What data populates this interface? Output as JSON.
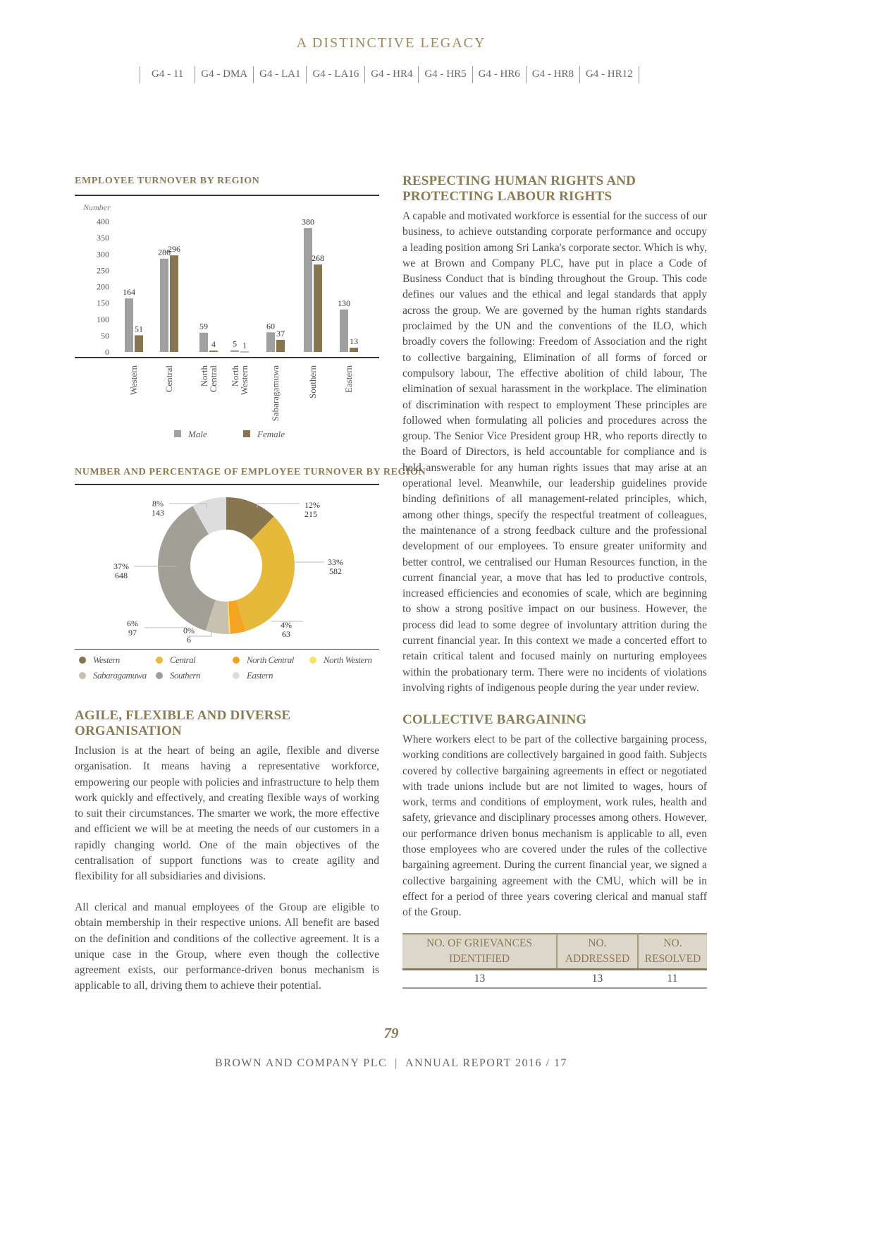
{
  "header": {
    "title": "A DISTINCTIVE LEGACY",
    "gri_tags": [
      "G4 - 11",
      "G4 - DMA",
      "G4 - LA1",
      "G4 - LA16",
      "G4 - HR4",
      "G4 - HR5",
      "G4 - HR6",
      "G4 - HR8",
      "G4 - HR12"
    ]
  },
  "chart_data": [
    {
      "type": "bar",
      "title": "EMPLOYEE TURNOVER BY REGION",
      "ylabel": "Number",
      "ylim": [
        0,
        400
      ],
      "yticks": [
        0,
        50,
        100,
        150,
        200,
        250,
        300,
        350,
        400
      ],
      "categories": [
        "Western",
        "Central",
        "North Central",
        "North Western",
        "Sabaragamuwa",
        "Southern",
        "Eastern"
      ],
      "series": [
        {
          "name": "Male",
          "color": "#a0a0a0",
          "values": [
            164,
            286,
            59,
            5,
            60,
            380,
            130
          ]
        },
        {
          "name": "Female",
          "color": "#87764f",
          "values": [
            51,
            296,
            4,
            1,
            37,
            268,
            13
          ]
        }
      ],
      "legend": "bottom",
      "grid": false
    },
    {
      "type": "pie",
      "donut": true,
      "title": "NUMBER AND PERCENTAGE OF EMPLOYEE TURNOVER BY REGION",
      "legend": "bottom",
      "slices": [
        {
          "name": "Western",
          "value": 215,
          "percent": "12%",
          "color": "#87764f"
        },
        {
          "name": "Central",
          "value": 582,
          "percent": "33%",
          "color": "#e6b93a"
        },
        {
          "name": "North Central",
          "value": 63,
          "percent": "4%",
          "color": "#f5a320"
        },
        {
          "name": "North Western",
          "value": 6,
          "percent": "0%",
          "color": "#f7e463"
        },
        {
          "name": "Sabaragamuwa",
          "value": 97,
          "percent": "6%",
          "color": "#c9c0ad"
        },
        {
          "name": "Southern",
          "value": 648,
          "percent": "37%",
          "color": "#a29f96"
        },
        {
          "name": "Eastern",
          "value": 143,
          "percent": "8%",
          "color": "#dddddd"
        }
      ]
    }
  ],
  "left": {
    "heading": "AGILE, FLEXIBLE AND DIVERSE ORGANISATION",
    "p1": "Inclusion is at the heart of being an agile, flexible and diverse organisation. It means having a representative workforce, empowering our people with policies and infrastructure to help them work quickly and effectively, and creating flexible ways of working to suit their circumstances. The smarter we work, the more effective and efficient we will be at meeting the needs of our customers in a rapidly changing world. One of the main objectives of the centralisation of support functions was to create agility and flexibility for all subsidiaries and divisions.",
    "p2": "All clerical and manual employees of the Group are eligible to obtain membership in their respective unions. All benefit are based on the definition and conditions of the collective agreement. It is a unique case in the Group, where even though the collective agreement exists, our performance-driven bonus mechanism is applicable to all, driving them to achieve their potential."
  },
  "right": {
    "heading1": "RESPECTING HUMAN RIGHTS AND PROTECTING LABOUR RIGHTS",
    "p1": "A capable and motivated workforce is essential for the success of our business, to achieve outstanding corporate performance and occupy a leading position among Sri Lanka's corporate sector. Which is why, we at Brown and Company PLC, have put in place a Code of Business Conduct that is binding throughout the Group. This code defines our values and the ethical and legal standards that apply across the group. We are governed by the human rights standards proclaimed by the UN and the conventions of the ILO, which broadly covers the following: Freedom of Association and the right to collective bargaining, Elimination of all forms of forced or compulsory labour, The effective abolition of child labour, The elimination of sexual harassment in the workplace. The elimination of discrimination with respect to employment These principles are followed when formulating all policies and procedures across the group. The Senior Vice President group HR, who reports directly to the Board of Directors, is held accountable for compliance and is held answerable for any human rights issues that may arise at an operational level. Meanwhile, our leadership guidelines provide binding definitions of all management-related principles, which, among other things, specify the respectful treatment of colleagues, the maintenance of a strong feedback culture and the professional development of our employees. To ensure greater uniformity and better control, we centralised our Human Resources function, in the current financial year, a move that has led to productive controls, increased efficiencies and economies of scale, which are beginning to show a strong positive impact on our business. However, the process did lead to some degree of involuntary attrition during the current financial year. In this context we made a concerted effort to retain critical talent and focused mainly on nurturing employees within the probationary term. There were no incidents of violations involving rights of indigenous people during the year under review.",
    "heading2": "COLLECTIVE BARGAINING",
    "p2": "Where workers elect to be part of the collective bargaining process, working conditions are collectively bargained in good faith. Subjects covered by collective bargaining agreements in effect or negotiated with trade unions include but are not limited to wages, hours of work, terms and conditions of employment, work rules, health and safety, grievance and disciplinary processes among others. However, our performance driven bonus mechanism is applicable to all, even those employees who are covered under the rules of the collective bargaining agreement. During the current financial year, we signed a collective bargaining agreement with the CMU, which will be in effect for a period of three years covering clerical and manual staff of the Group.",
    "table": {
      "headers": [
        "NO. OF GRIEVANCES IDENTIFIED",
        "NO. ADDRESSED",
        "NO. RESOLVED"
      ],
      "rows": [
        [
          "13",
          "13",
          "11"
        ]
      ]
    }
  },
  "footer": {
    "page_number": "79",
    "text": "BROWN AND COMPANY PLC  |  ANNUAL REPORT 2016 / 17"
  }
}
